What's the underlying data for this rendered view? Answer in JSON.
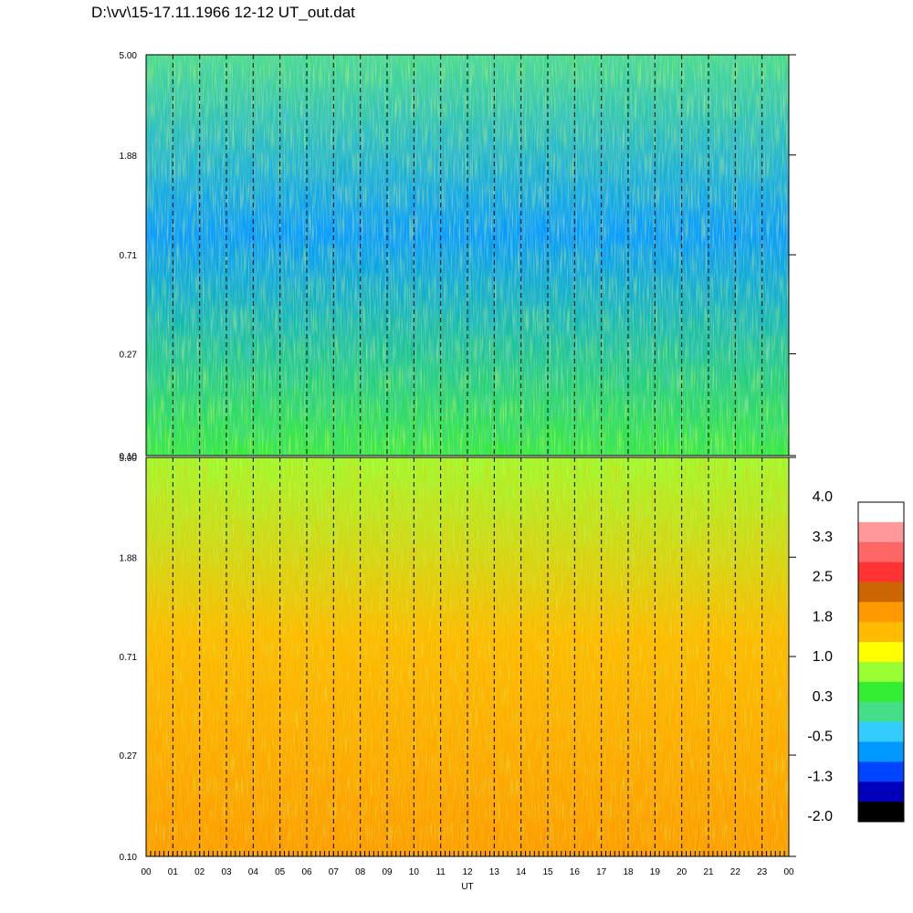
{
  "file_title": "D:\\vv\\15-17.11.1966  12-12 UT_out.dat",
  "chart_data": [
    {
      "type": "heatmap",
      "panel": "upper",
      "ylabel": "",
      "y_scale": "log",
      "y_ticks": [
        "5.00",
        "1.88",
        "0.71",
        "0.27",
        "0.10"
      ],
      "ylim": [
        0.1,
        5.0
      ],
      "x_ticks": [
        "00",
        "01",
        "02",
        "03",
        "04",
        "05",
        "06",
        "07",
        "08",
        "09",
        "10",
        "11",
        "12",
        "13",
        "14",
        "15",
        "16",
        "17",
        "18",
        "19",
        "20",
        "21",
        "22",
        "23",
        "00"
      ],
      "xlabel": "",
      "dashed_hour_lines": true,
      "dominant_levels": {
        "high_y": 0.1,
        "mid_y": -0.5,
        "low_y": 0.6
      }
    },
    {
      "type": "heatmap",
      "panel": "lower",
      "ylabel": "",
      "y_scale": "log",
      "y_ticks": [
        "5.00",
        "1.88",
        "0.71",
        "0.27",
        "0.10"
      ],
      "ylim": [
        0.1,
        5.0
      ],
      "x_ticks": [
        "00",
        "01",
        "02",
        "03",
        "04",
        "05",
        "06",
        "07",
        "08",
        "09",
        "10",
        "11",
        "12",
        "13",
        "14",
        "15",
        "16",
        "17",
        "18",
        "19",
        "20",
        "21",
        "22",
        "23",
        "00"
      ],
      "xlabel": "UT",
      "dashed_hour_lines": true,
      "dominant_levels": {
        "high_y": 0.9,
        "mid_y": 1.6,
        "low_y": 1.9
      }
    }
  ],
  "colorbar": {
    "labels": [
      "4.0",
      "3.3",
      "2.5",
      "1.8",
      "1.0",
      "0.3",
      "-0.5",
      "-1.3",
      "-2.0"
    ],
    "colors_top_to_bottom": [
      "#ffffff",
      "#ff9999",
      "#ff6666",
      "#ff3333",
      "#cc6600",
      "#ff9900",
      "#ffbb00",
      "#ffff00",
      "#99ff33",
      "#33ee33",
      "#44dd88",
      "#33ccff",
      "#0099ff",
      "#0044ff",
      "#0000bb",
      "#000000"
    ]
  }
}
